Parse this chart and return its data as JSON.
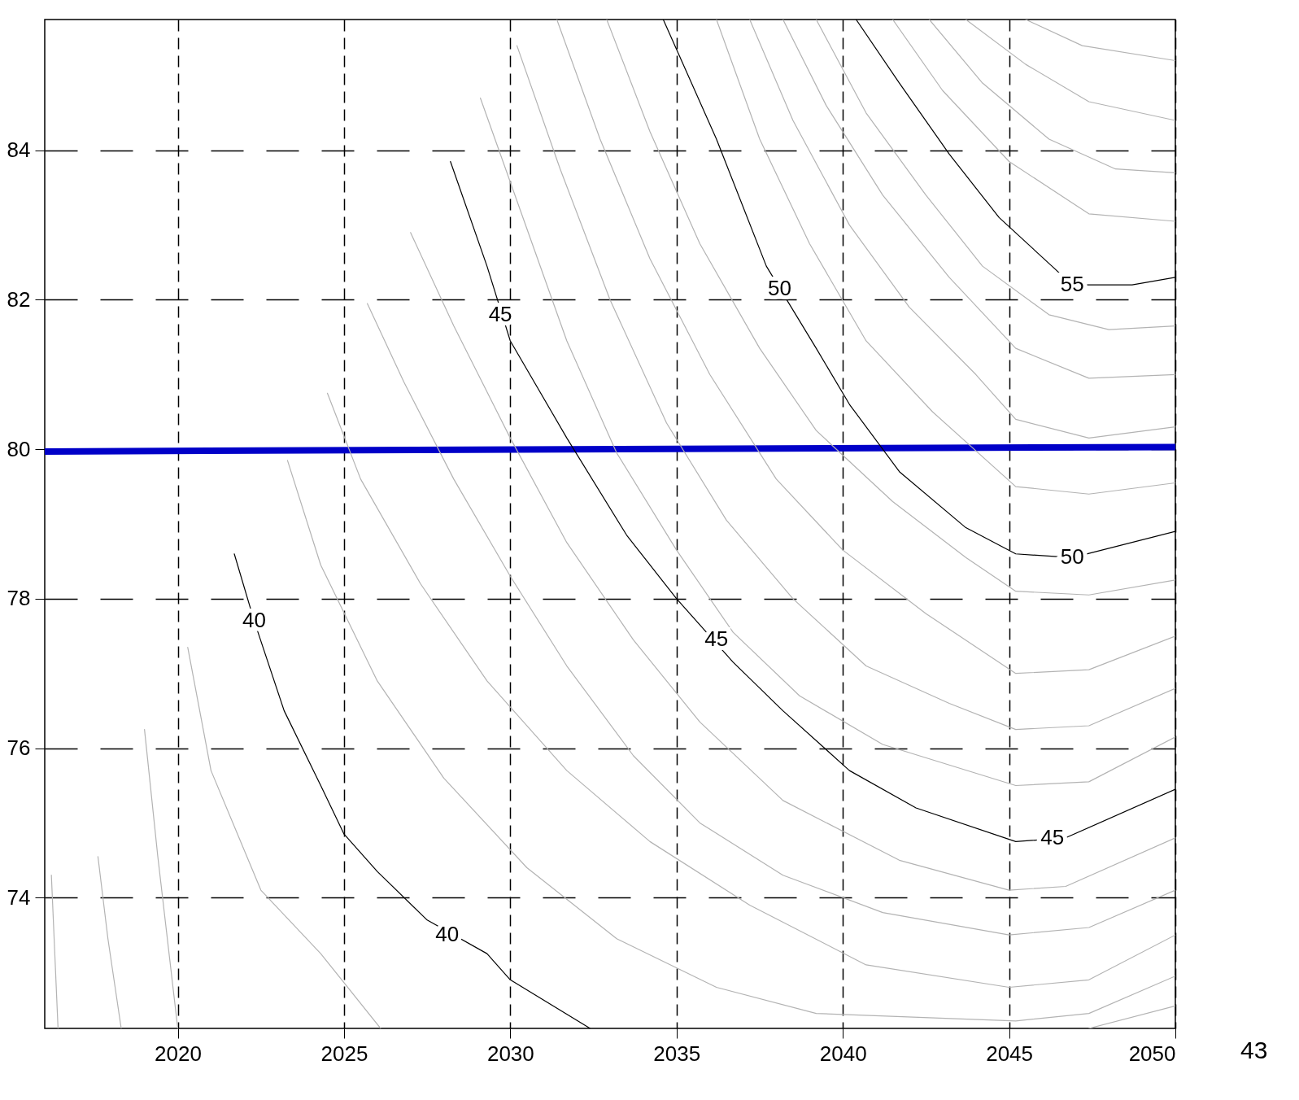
{
  "chart_data": {
    "type": "line",
    "xlim": [
      2016,
      2050
    ],
    "ylim": [
      72.25,
      85.75
    ],
    "xticks": [
      2020,
      2025,
      2030,
      2035,
      2040,
      2045,
      2050
    ],
    "yticks": [
      74,
      76,
      78,
      80,
      82,
      84
    ],
    "grid": true,
    "marker": "none",
    "line_style": "solid",
    "series": [
      {
        "color": "#0000c8",
        "x": [
          2016,
          2050
        ],
        "values": [
          79.97,
          80.03
        ]
      },
      {
        "color": "#000000",
        "x": [
          2021.7,
          2022.3,
          2023.2,
          2024.3,
          2025.0,
          2026.0,
          2027.5,
          2029.3,
          2030.0,
          2032.4
        ],
        "values": [
          78.6,
          77.7,
          76.5,
          75.5,
          74.85,
          74.35,
          73.7,
          73.25,
          72.9,
          72.25
        ]
      },
      {
        "color": "#000000",
        "x": [
          2028.2,
          2029.3,
          2030.0,
          2031.7,
          2033.5,
          2035.0,
          2036.7,
          2038.2,
          2040.2,
          2042.2,
          2045.2,
          2046.7,
          2050.0
        ],
        "values": [
          83.85,
          82.45,
          81.45,
          80.15,
          78.85,
          78.0,
          77.15,
          76.5,
          75.7,
          75.2,
          74.75,
          74.8,
          75.45
        ]
      },
      {
        "color": "#000000",
        "x": [
          2034.6,
          2036.2,
          2037.7,
          2039.2,
          2040.2,
          2041.7,
          2043.7,
          2045.2,
          2046.9,
          2050.0
        ],
        "values": [
          85.75,
          84.15,
          82.45,
          81.35,
          80.6,
          79.7,
          78.95,
          78.6,
          78.55,
          78.9
        ]
      },
      {
        "color": "#000000",
        "x": [
          2040.4,
          2041.7,
          2043.2,
          2044.7,
          2046.9,
          2048.7,
          2050.0
        ],
        "values": [
          85.75,
          84.9,
          83.95,
          83.1,
          82.2,
          82.2,
          82.3
        ]
      },
      {
        "color": "#b3b3b3",
        "x": [
          2016.2,
          2016.4
        ],
        "values": [
          74.3,
          72.25
        ]
      },
      {
        "color": "#b3b3b3",
        "x": [
          2017.6,
          2017.9,
          2018.3
        ],
        "values": [
          74.55,
          73.45,
          72.25
        ]
      },
      {
        "color": "#b3b3b3",
        "x": [
          2019.0,
          2019.4,
          2020.0
        ],
        "values": [
          76.25,
          74.55,
          72.25
        ]
      },
      {
        "color": "#b3b3b3",
        "x": [
          2020.3,
          2021.0,
          2022.5,
          2024.3,
          2026.1
        ],
        "values": [
          77.35,
          75.7,
          74.1,
          73.25,
          72.25
        ]
      },
      {
        "color": "#b3b3b3",
        "x": [
          2023.3,
          2024.3,
          2026.0,
          2028.0,
          2030.5,
          2033.2,
          2036.2,
          2039.2,
          2045.2,
          2047.4,
          2050.0
        ],
        "values": [
          79.85,
          78.45,
          76.9,
          75.6,
          74.4,
          73.45,
          72.8,
          72.45,
          72.35,
          72.45,
          72.95
        ]
      },
      {
        "color": "#b3b3b3",
        "x": [
          2024.5,
          2025.5,
          2027.3,
          2029.3,
          2031.7,
          2034.2,
          2037.2,
          2040.7,
          2045.0,
          2047.4,
          2050.0
        ],
        "values": [
          80.75,
          79.6,
          78.2,
          76.9,
          75.7,
          74.75,
          73.9,
          73.1,
          72.8,
          72.9,
          73.5
        ]
      },
      {
        "color": "#b3b3b3",
        "x": [
          2025.7,
          2026.8,
          2028.3,
          2030.0,
          2031.7,
          2033.7,
          2035.7,
          2038.2,
          2041.2,
          2045.0,
          2047.4,
          2050.0
        ],
        "values": [
          81.95,
          80.9,
          79.6,
          78.3,
          77.1,
          75.9,
          75.0,
          74.3,
          73.8,
          73.5,
          73.6,
          74.1
        ]
      },
      {
        "color": "#b3b3b3",
        "x": [
          2027.0,
          2028.3,
          2030.0,
          2031.7,
          2033.7,
          2035.7,
          2038.2,
          2041.7,
          2045.0,
          2046.7,
          2050.0
        ],
        "values": [
          82.9,
          81.65,
          80.15,
          78.75,
          77.45,
          76.35,
          75.3,
          74.5,
          74.1,
          74.15,
          74.8
        ]
      },
      {
        "color": "#b3b3b3",
        "x": [
          2029.1,
          2030.3,
          2031.7,
          2033.2,
          2035.0,
          2036.7,
          2038.7,
          2041.2,
          2045.2,
          2047.4,
          2050.0
        ],
        "values": [
          84.7,
          83.2,
          81.45,
          79.95,
          78.65,
          77.55,
          76.7,
          76.05,
          75.5,
          75.55,
          76.15
        ]
      },
      {
        "color": "#b3b3b3",
        "x": [
          2030.2,
          2031.5,
          2033.0,
          2034.7,
          2036.5,
          2038.5,
          2040.7,
          2043.2,
          2045.2,
          2047.4,
          2050.0
        ],
        "values": [
          85.4,
          83.75,
          82.0,
          80.35,
          79.05,
          78.0,
          77.1,
          76.6,
          76.25,
          76.3,
          76.8
        ]
      },
      {
        "color": "#b3b3b3",
        "x": [
          2031.4,
          2032.7,
          2034.2,
          2036.0,
          2038.0,
          2040.0,
          2042.5,
          2045.2,
          2047.4,
          2050.0
        ],
        "values": [
          85.75,
          84.15,
          82.55,
          81.0,
          79.6,
          78.65,
          77.8,
          77.0,
          77.05,
          77.5
        ]
      },
      {
        "color": "#b3b3b3",
        "x": [
          2032.9,
          2034.2,
          2035.7,
          2037.5,
          2039.2,
          2041.5,
          2043.7,
          2045.2,
          2047.4,
          2050.0
        ],
        "values": [
          85.75,
          84.25,
          82.75,
          81.35,
          80.25,
          79.3,
          78.55,
          78.1,
          78.05,
          78.25
        ]
      },
      {
        "color": "#b3b3b3",
        "x": [
          2036.2,
          2037.5,
          2039.0,
          2040.7,
          2042.7,
          2045.2,
          2047.4,
          2050.0
        ],
        "values": [
          85.75,
          84.15,
          82.75,
          81.45,
          80.5,
          79.5,
          79.4,
          79.55
        ]
      },
      {
        "color": "#b3b3b3",
        "x": [
          2037.2,
          2038.5,
          2040.2,
          2042.0,
          2044.0,
          2045.2,
          2047.4,
          2050.0
        ],
        "values": [
          85.75,
          84.4,
          83.0,
          81.9,
          81.0,
          80.4,
          80.15,
          80.3
        ]
      },
      {
        "color": "#b3b3b3",
        "x": [
          2038.2,
          2039.5,
          2041.2,
          2043.2,
          2045.2,
          2047.4,
          2050.0
        ],
        "values": [
          85.75,
          84.6,
          83.4,
          82.3,
          81.35,
          80.95,
          81.0
        ]
      },
      {
        "color": "#b3b3b3",
        "x": [
          2039.2,
          2040.7,
          2042.5,
          2044.2,
          2046.2,
          2048.0,
          2050.0
        ],
        "values": [
          85.75,
          84.5,
          83.4,
          82.45,
          81.8,
          81.6,
          81.65
        ]
      },
      {
        "color": "#b3b3b3",
        "x": [
          2041.5,
          2043.0,
          2045.0,
          2047.4,
          2050.0
        ],
        "values": [
          85.75,
          84.8,
          83.85,
          83.15,
          83.05
        ]
      },
      {
        "color": "#b3b3b3",
        "x": [
          2042.6,
          2044.2,
          2046.2,
          2048.2,
          2050.0
        ],
        "values": [
          85.75,
          84.9,
          84.15,
          83.75,
          83.7
        ]
      },
      {
        "color": "#b3b3b3",
        "x": [
          2043.7,
          2045.5,
          2047.4,
          2050.0
        ],
        "values": [
          85.75,
          85.15,
          84.65,
          84.4
        ]
      },
      {
        "color": "#b3b3b3",
        "x": [
          2045.5,
          2047.2,
          2050.0
        ],
        "values": [
          85.75,
          85.4,
          85.2
        ]
      },
      {
        "color": "#b3b3b3",
        "x": [
          2047.4,
          2050.0
        ],
        "values": [
          72.25,
          72.55
        ]
      }
    ],
    "annotations": [
      {
        "text": "40",
        "x": 2022.3,
        "y": 77.7
      },
      {
        "text": "40",
        "x": 2028.1,
        "y": 73.5
      },
      {
        "text": "45",
        "x": 2029.7,
        "y": 81.8
      },
      {
        "text": "45",
        "x": 2036.2,
        "y": 77.45
      },
      {
        "text": "45",
        "x": 2046.3,
        "y": 74.8
      },
      {
        "text": "50",
        "x": 2038.1,
        "y": 82.15
      },
      {
        "text": "50",
        "x": 2046.9,
        "y": 78.55
      },
      {
        "text": "55",
        "x": 2046.9,
        "y": 82.2
      },
      "43"
    ]
  }
}
